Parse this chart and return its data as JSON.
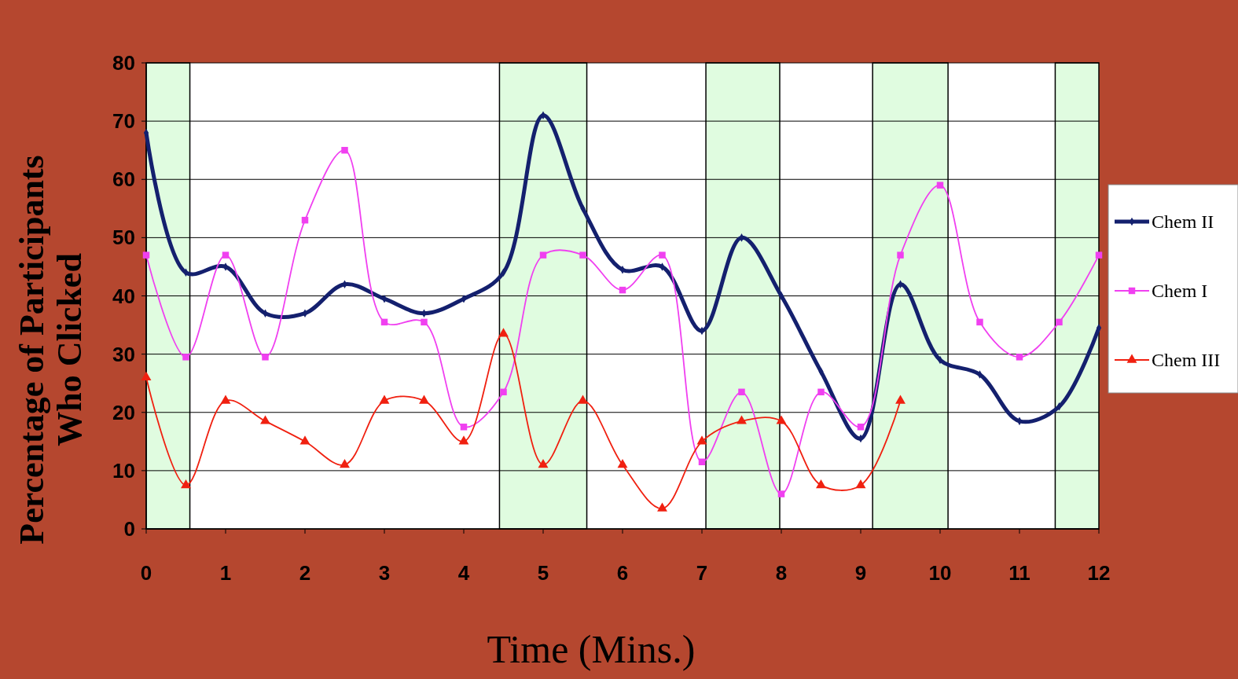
{
  "chart_data": {
    "type": "line",
    "xlabel": "Time (Mins.)",
    "ylabel": "Percentage of Participants Who Clicked",
    "x": [
      0,
      0.5,
      1,
      1.5,
      2,
      2.5,
      3,
      3.5,
      4,
      4.5,
      5,
      5.5,
      6,
      6.5,
      7,
      7.5,
      8,
      8.5,
      9,
      9.5,
      10,
      10.5,
      11,
      11.5,
      12
    ],
    "series": [
      {
        "name": "Chem II",
        "color": "#14206e",
        "marker": "diamond",
        "values": [
          68,
          44,
          45,
          37,
          37,
          42,
          39.5,
          37,
          39.5,
          44,
          71,
          55,
          44.5,
          45,
          34,
          50,
          40,
          27,
          15.5,
          42,
          29,
          26.5,
          18.5,
          21,
          34.5
        ]
      },
      {
        "name": "Chem I",
        "color": "#f040f0",
        "marker": "square",
        "values": [
          47,
          29.5,
          47,
          29.5,
          53,
          65,
          35.5,
          35.5,
          17.5,
          23.5,
          47,
          47,
          41,
          47,
          11.5,
          23.5,
          6,
          23.5,
          17.5,
          47,
          59,
          35.5,
          29.5,
          35.5,
          47
        ]
      },
      {
        "name": "Chem III",
        "color": "#f02010",
        "marker": "triangle",
        "values": [
          26,
          7.5,
          22,
          18.5,
          15,
          11,
          22,
          22,
          15,
          33.5,
          11,
          22,
          11,
          3.5,
          15,
          18.5,
          18.5,
          7.5,
          7.5,
          22,
          null,
          null,
          null,
          null,
          null
        ]
      }
    ],
    "xlim": [
      0,
      12
    ],
    "xticks": [
      0,
      1,
      2,
      3,
      4,
      5,
      6,
      7,
      8,
      9,
      10,
      11,
      12
    ],
    "ylim": [
      0,
      80
    ],
    "yticks": [
      0,
      10,
      20,
      30,
      40,
      50,
      60,
      70,
      80
    ],
    "bands": [
      {
        "axis": "x",
        "from": 0,
        "to": 0.55,
        "color": "#e0fce0"
      },
      {
        "axis": "x",
        "from": 4.45,
        "to": 5.55,
        "color": "#e0fce0"
      },
      {
        "axis": "x",
        "from": 7.05,
        "to": 7.98,
        "color": "#e0fce0"
      },
      {
        "axis": "x",
        "from": 9.15,
        "to": 10.1,
        "color": "#e0fce0"
      },
      {
        "axis": "x",
        "from": 11.45,
        "to": 12,
        "color": "#e0fce0"
      }
    ],
    "grid": "y",
    "legend": "right"
  }
}
